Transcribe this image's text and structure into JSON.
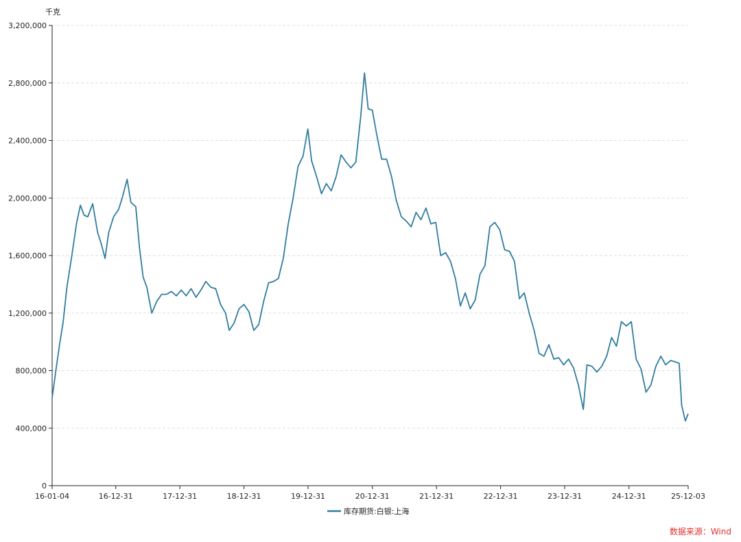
{
  "chart_data": {
    "type": "line",
    "y_unit": "千克",
    "ylim": [
      0,
      3200000
    ],
    "y_ticks": [
      0,
      400000,
      800000,
      1200000,
      1600000,
      2000000,
      2400000,
      2800000,
      3200000
    ],
    "y_tick_labels": [
      "0",
      "400,000",
      "800,000",
      "1,200,000",
      "1,600,000",
      "2,000,000",
      "2,400,000",
      "2,800,000",
      "3,200,000"
    ],
    "xlim": [
      "2016-01-04",
      "2025-12-03"
    ],
    "x_ticks": [
      "2016-01-04",
      "2016-12-31",
      "2017-12-31",
      "2018-12-31",
      "2019-12-31",
      "2020-12-31",
      "2021-12-31",
      "2022-12-31",
      "2023-12-31",
      "2024-12-31",
      "2025-12-03"
    ],
    "x_tick_labels": [
      "16-01-04",
      "16-12-31",
      "17-12-31",
      "18-12-31",
      "19-12-31",
      "20-12-31",
      "21-12-31",
      "22-12-31",
      "23-12-31",
      "24-12-31",
      "25-12-03"
    ],
    "grid": true,
    "legend_position": "bottom",
    "series": [
      {
        "name": "库存期货:白银:上海",
        "color": "#2f7c9e",
        "points": [
          [
            "2016-01-04",
            610000
          ],
          [
            "2016-01-25",
            800000
          ],
          [
            "2016-02-15",
            980000
          ],
          [
            "2016-03-07",
            1140000
          ],
          [
            "2016-03-28",
            1380000
          ],
          [
            "2016-04-25",
            1600000
          ],
          [
            "2016-05-23",
            1830000
          ],
          [
            "2016-06-13",
            1950000
          ],
          [
            "2016-07-04",
            1880000
          ],
          [
            "2016-07-25",
            1870000
          ],
          [
            "2016-08-22",
            1960000
          ],
          [
            "2016-09-19",
            1760000
          ],
          [
            "2016-10-10",
            1680000
          ],
          [
            "2016-10-31",
            1580000
          ],
          [
            "2016-11-21",
            1760000
          ],
          [
            "2016-12-19",
            1870000
          ],
          [
            "2017-01-16",
            1920000
          ],
          [
            "2017-02-06",
            2000000
          ],
          [
            "2017-03-06",
            2130000
          ],
          [
            "2017-03-27",
            1970000
          ],
          [
            "2017-04-24",
            1940000
          ],
          [
            "2017-05-15",
            1660000
          ],
          [
            "2017-06-05",
            1450000
          ],
          [
            "2017-06-26",
            1380000
          ],
          [
            "2017-07-24",
            1200000
          ],
          [
            "2017-08-21",
            1280000
          ],
          [
            "2017-09-18",
            1330000
          ],
          [
            "2017-10-16",
            1330000
          ],
          [
            "2017-11-13",
            1350000
          ],
          [
            "2017-12-11",
            1320000
          ],
          [
            "2018-01-08",
            1360000
          ],
          [
            "2018-02-05",
            1320000
          ],
          [
            "2018-03-05",
            1370000
          ],
          [
            "2018-04-02",
            1310000
          ],
          [
            "2018-04-30",
            1360000
          ],
          [
            "2018-05-28",
            1420000
          ],
          [
            "2018-06-25",
            1380000
          ],
          [
            "2018-07-23",
            1370000
          ],
          [
            "2018-08-20",
            1260000
          ],
          [
            "2018-09-17",
            1200000
          ],
          [
            "2018-10-08",
            1080000
          ],
          [
            "2018-11-05",
            1130000
          ],
          [
            "2018-12-03",
            1230000
          ],
          [
            "2018-12-31",
            1260000
          ],
          [
            "2019-01-28",
            1210000
          ],
          [
            "2019-02-25",
            1080000
          ],
          [
            "2019-03-25",
            1120000
          ],
          [
            "2019-04-22",
            1280000
          ],
          [
            "2019-05-20",
            1410000
          ],
          [
            "2019-06-17",
            1420000
          ],
          [
            "2019-07-15",
            1440000
          ],
          [
            "2019-08-12",
            1580000
          ],
          [
            "2019-09-09",
            1820000
          ],
          [
            "2019-10-07",
            2000000
          ],
          [
            "2019-11-04",
            2220000
          ],
          [
            "2019-12-02",
            2290000
          ],
          [
            "2019-12-30",
            2480000
          ],
          [
            "2020-01-20",
            2260000
          ],
          [
            "2020-02-17",
            2150000
          ],
          [
            "2020-03-16",
            2030000
          ],
          [
            "2020-04-13",
            2100000
          ],
          [
            "2020-05-11",
            2050000
          ],
          [
            "2020-06-08",
            2150000
          ],
          [
            "2020-07-06",
            2300000
          ],
          [
            "2020-08-03",
            2250000
          ],
          [
            "2020-08-31",
            2210000
          ],
          [
            "2020-09-28",
            2250000
          ],
          [
            "2020-10-26",
            2570000
          ],
          [
            "2020-11-16",
            2870000
          ],
          [
            "2020-12-07",
            2620000
          ],
          [
            "2020-12-31",
            2610000
          ],
          [
            "2021-01-25",
            2440000
          ],
          [
            "2021-02-22",
            2270000
          ],
          [
            "2021-03-22",
            2270000
          ],
          [
            "2021-04-19",
            2150000
          ],
          [
            "2021-05-17",
            1980000
          ],
          [
            "2021-06-14",
            1870000
          ],
          [
            "2021-07-12",
            1840000
          ],
          [
            "2021-08-09",
            1800000
          ],
          [
            "2021-09-06",
            1900000
          ],
          [
            "2021-10-04",
            1850000
          ],
          [
            "2021-11-01",
            1930000
          ],
          [
            "2021-11-29",
            1820000
          ],
          [
            "2021-12-27",
            1830000
          ],
          [
            "2022-01-24",
            1600000
          ],
          [
            "2022-02-21",
            1620000
          ],
          [
            "2022-03-21",
            1560000
          ],
          [
            "2022-04-18",
            1440000
          ],
          [
            "2022-05-16",
            1250000
          ],
          [
            "2022-06-13",
            1340000
          ],
          [
            "2022-07-11",
            1230000
          ],
          [
            "2022-08-08",
            1290000
          ],
          [
            "2022-09-05",
            1470000
          ],
          [
            "2022-10-03",
            1530000
          ],
          [
            "2022-10-31",
            1800000
          ],
          [
            "2022-11-28",
            1830000
          ],
          [
            "2022-12-26",
            1780000
          ],
          [
            "2023-01-23",
            1640000
          ],
          [
            "2023-02-20",
            1630000
          ],
          [
            "2023-03-20",
            1560000
          ],
          [
            "2023-04-17",
            1300000
          ],
          [
            "2023-05-15",
            1340000
          ],
          [
            "2023-06-12",
            1200000
          ],
          [
            "2023-07-10",
            1080000
          ],
          [
            "2023-08-07",
            920000
          ],
          [
            "2023-09-04",
            900000
          ],
          [
            "2023-10-02",
            980000
          ],
          [
            "2023-10-30",
            880000
          ],
          [
            "2023-11-27",
            890000
          ],
          [
            "2023-12-25",
            840000
          ],
          [
            "2024-01-22",
            880000
          ],
          [
            "2024-02-19",
            820000
          ],
          [
            "2024-03-18",
            700000
          ],
          [
            "2024-04-15",
            530000
          ],
          [
            "2024-05-06",
            840000
          ],
          [
            "2024-06-03",
            830000
          ],
          [
            "2024-07-01",
            790000
          ],
          [
            "2024-07-29",
            830000
          ],
          [
            "2024-08-26",
            900000
          ],
          [
            "2024-09-23",
            1030000
          ],
          [
            "2024-10-21",
            970000
          ],
          [
            "2024-11-18",
            1140000
          ],
          [
            "2024-12-16",
            1110000
          ],
          [
            "2025-01-13",
            1140000
          ],
          [
            "2025-02-10",
            880000
          ],
          [
            "2025-03-10",
            810000
          ],
          [
            "2025-04-07",
            650000
          ],
          [
            "2025-05-05",
            700000
          ],
          [
            "2025-06-02",
            830000
          ],
          [
            "2025-06-30",
            900000
          ],
          [
            "2025-07-28",
            840000
          ],
          [
            "2025-08-25",
            870000
          ],
          [
            "2025-09-22",
            860000
          ],
          [
            "2025-10-13",
            850000
          ],
          [
            "2025-10-27",
            560000
          ],
          [
            "2025-11-17",
            450000
          ],
          [
            "2025-12-03",
            500000
          ]
        ]
      }
    ]
  },
  "source": {
    "text": "数据来源：Wind",
    "color": "#e0302e"
  },
  "axis_color": "#222222",
  "grid_color": "#dddddd"
}
